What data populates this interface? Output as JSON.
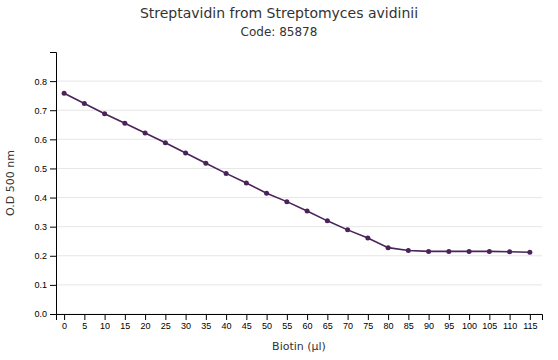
{
  "chart_data": {
    "type": "line",
    "title": "Streptavidin from Streptomyces avidinii",
    "subtitle": "Code: 85878",
    "x_label": "Biotin (µl)",
    "y_label": "O.D 500 nm",
    "x": [
      0,
      5,
      10,
      15,
      20,
      25,
      30,
      35,
      40,
      45,
      50,
      55,
      60,
      65,
      70,
      75,
      80,
      85,
      90,
      95,
      100,
      105,
      110,
      115
    ],
    "values": [
      0.758,
      0.723,
      0.688,
      0.655,
      0.622,
      0.588,
      0.553,
      0.518,
      0.483,
      0.45,
      0.415,
      0.386,
      0.354,
      0.32,
      0.289,
      0.261,
      0.228,
      0.218,
      0.215,
      0.215,
      0.215,
      0.215,
      0.214,
      0.212
    ],
    "color": "#4a235a",
    "marker": "circle",
    "xlim": [
      -2,
      118
    ],
    "ylim": [
      0,
      0.9
    ],
    "xticks": [
      0,
      5,
      10,
      15,
      20,
      25,
      30,
      35,
      40,
      45,
      50,
      55,
      60,
      65,
      70,
      75,
      80,
      85,
      90,
      95,
      100,
      105,
      110,
      115
    ],
    "yticks": [
      {
        "value": 0,
        "label": "0.0"
      },
      0.1,
      0.2,
      0.3,
      0.4,
      0.5,
      0.6,
      0.7,
      0.8
    ],
    "grid": true
  }
}
